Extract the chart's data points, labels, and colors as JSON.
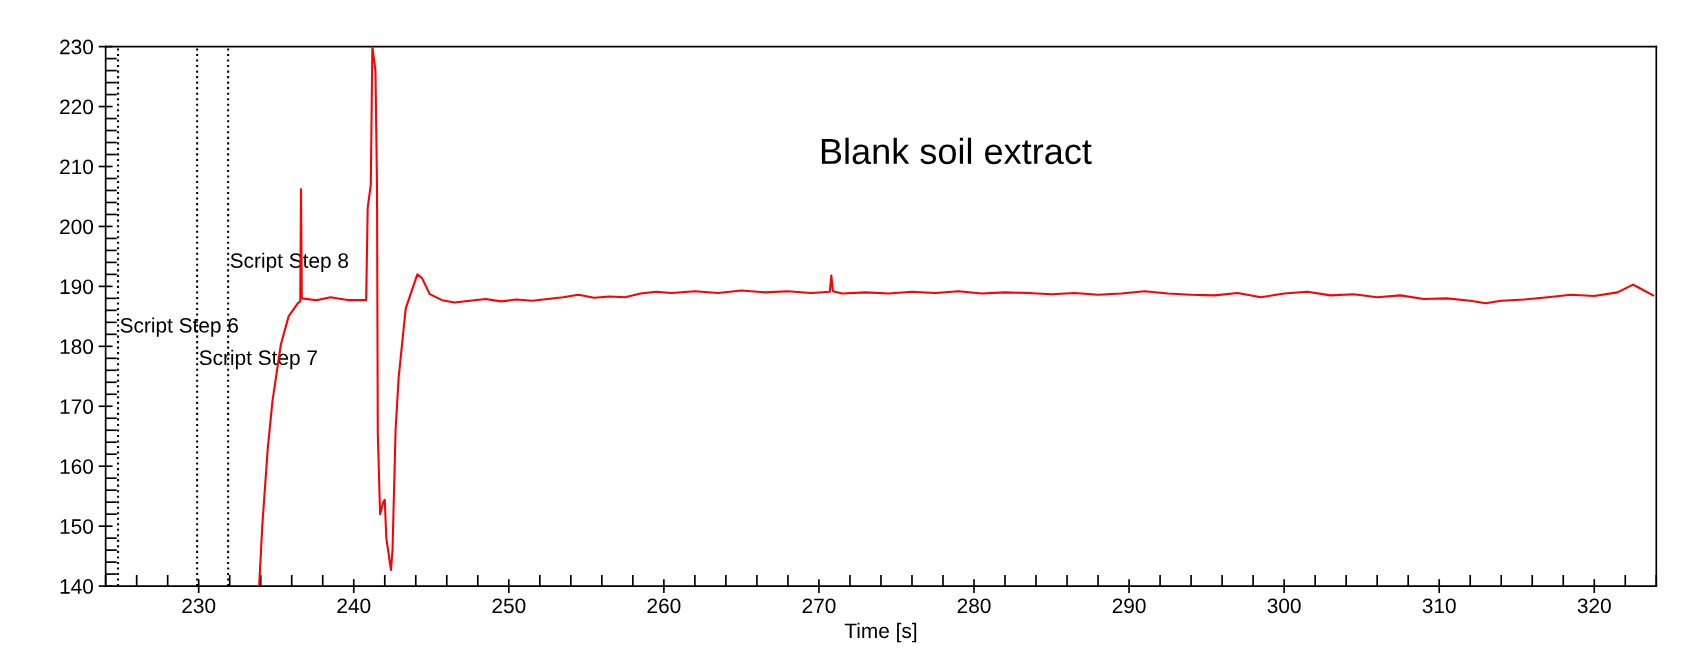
{
  "chart_data": {
    "type": "line",
    "xlabel": "Time [s]",
    "annotations": [
      "Blank soil extract"
    ],
    "xlim": [
      224,
      324
    ],
    "xticks": [
      230,
      240,
      250,
      260,
      270,
      280,
      290,
      300,
      310,
      320
    ],
    "ylim": [
      140,
      230
    ],
    "yticks": [
      140,
      150,
      160,
      170,
      180,
      190,
      200,
      210,
      220,
      230
    ],
    "grid": false,
    "legend": false,
    "marker": "none",
    "line_style": "solid",
    "ref_lines": [
      {
        "axis": "x",
        "value": 224.8,
        "label": "Script Step 6",
        "color": "#000000",
        "line_style": "dotted"
      },
      {
        "axis": "x",
        "value": 229.9,
        "label": "Script Step 7",
        "color": "#000000",
        "line_style": "dotted"
      },
      {
        "axis": "x",
        "value": 231.9,
        "label": "Script Step 8",
        "color": "#000000",
        "line_style": "dotted"
      }
    ],
    "series": [
      {
        "color": "#ff0000",
        "x": [
          233.9,
          234.1,
          234.45,
          234.76,
          235.3,
          235.8,
          236.4,
          236.55,
          236.6,
          236.65,
          237.6,
          238.5,
          239.7,
          240.8,
          240.9,
          241.1,
          241.2,
          241.4,
          241.5,
          241.55,
          241.7,
          241.9,
          242.0,
          242.1,
          242.4,
          242.5,
          242.7,
          242.9,
          243.35,
          244.1,
          244.4,
          244.9,
          245.7,
          246.5,
          247.5,
          248.5,
          249.5,
          250.5,
          251.5,
          252.5,
          253.5,
          254.5,
          255.5,
          256.5,
          257.5,
          258.5,
          259.5,
          260.5,
          262,
          263.5,
          265,
          266.5,
          268,
          269.5,
          270.7,
          270.8,
          270.9,
          271.5,
          273,
          274.5,
          276,
          277.5,
          279,
          280.5,
          282,
          283.5,
          285,
          286.5,
          288,
          289.5,
          291,
          292.5,
          294,
          295.5,
          297,
          298.5,
          300,
          301.5,
          303,
          304.5,
          306,
          307.5,
          309,
          310.5,
          312,
          313,
          314,
          315.5,
          317,
          318.5,
          320,
          321.5,
          322.5,
          323,
          323.8
        ],
        "values": [
          140,
          150,
          162.8,
          170.9,
          180.3,
          185,
          187.2,
          187.5,
          206.2,
          188,
          187.7,
          188.2,
          187.7,
          187.7,
          203.1,
          207,
          230,
          226,
          206.5,
          165.5,
          152,
          154,
          154.4,
          148,
          142.7,
          146,
          166.2,
          174.9,
          186.3,
          192,
          191.4,
          188.7,
          187.7,
          187.3,
          187.6,
          187.9,
          187.5,
          187.8,
          187.6,
          187.9,
          188.2,
          188.6,
          188.1,
          188.3,
          188.2,
          188.8,
          189.1,
          188.9,
          189.2,
          188.9,
          189.3,
          189.0,
          189.2,
          188.9,
          189.1,
          191.8,
          189.2,
          188.8,
          189.0,
          188.8,
          189.1,
          188.9,
          189.2,
          188.8,
          189.0,
          188.9,
          188.7,
          188.9,
          188.6,
          188.8,
          189.2,
          188.8,
          188.6,
          188.5,
          188.9,
          188.2,
          188.8,
          189.1,
          188.5,
          188.7,
          188.2,
          188.5,
          187.9,
          188.0,
          187.6,
          187.2,
          187.6,
          187.8,
          188.2,
          188.6,
          188.4,
          189.0,
          190.3,
          189.6,
          188.5
        ]
      }
    ]
  }
}
